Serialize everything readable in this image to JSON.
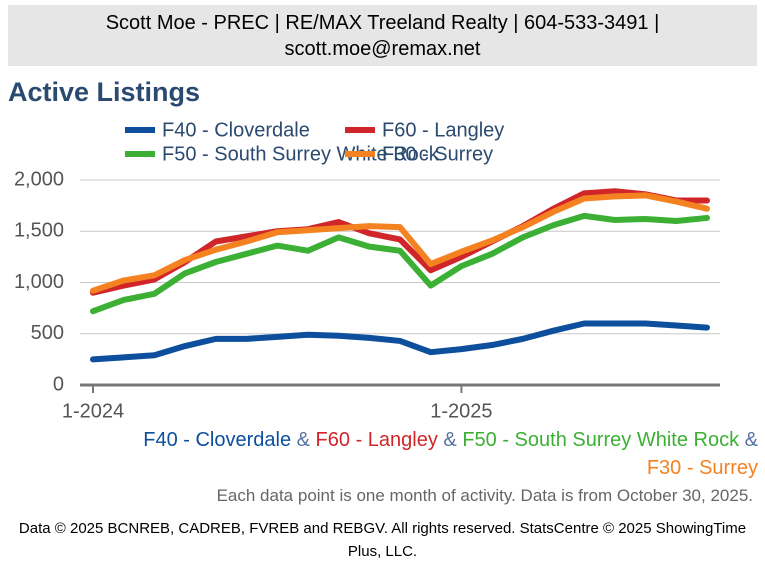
{
  "header": {
    "text": "Scott Moe - PREC | RE/MAX Treeland Realty | 604-533-3491 | scott.moe@remax.net"
  },
  "chart_data": {
    "type": "line",
    "title": "Active Listings",
    "categories": [
      "1-2024",
      null,
      null,
      null,
      null,
      null,
      null,
      null,
      null,
      null,
      null,
      null,
      "1-2025",
      null,
      null,
      null,
      null,
      null,
      null,
      null,
      null
    ],
    "series": [
      {
        "name": "F40 - Cloverdale",
        "color": "#0d4f9c",
        "values": [
          250,
          270,
          290,
          380,
          450,
          450,
          470,
          490,
          480,
          460,
          430,
          320,
          350,
          390,
          450,
          530,
          600,
          600,
          600,
          580,
          560
        ]
      },
      {
        "name": "F60 - Langley",
        "color": "#d0262a",
        "values": [
          900,
          970,
          1030,
          1200,
          1400,
          1450,
          1500,
          1520,
          1590,
          1480,
          1420,
          1120,
          1250,
          1400,
          1550,
          1720,
          1870,
          1890,
          1860,
          1800,
          1800
        ]
      },
      {
        "name": "F50 - South Surrey White Rock",
        "color": "#3cb034",
        "values": [
          720,
          830,
          890,
          1090,
          1200,
          1280,
          1360,
          1310,
          1440,
          1350,
          1310,
          970,
          1160,
          1280,
          1440,
          1560,
          1650,
          1610,
          1620,
          1600,
          1630
        ]
      },
      {
        "name": "F30 - Surrey",
        "color": "#f58220",
        "values": [
          920,
          1020,
          1070,
          1220,
          1320,
          1400,
          1490,
          1510,
          1530,
          1550,
          1540,
          1180,
          1300,
          1410,
          1540,
          1690,
          1820,
          1840,
          1850,
          1790,
          1720
        ]
      }
    ],
    "ylim": [
      0,
      2000
    ],
    "yticks": [
      0,
      500,
      {
        "value": 1000,
        "label": "1,000"
      },
      {
        "value": 1500,
        "label": "1,500"
      },
      {
        "value": 2000,
        "label": "2,000"
      }
    ],
    "grid": true,
    "series_joiner": "&",
    "note": "Each data point is one month of activity. Data is from October 30, 2025."
  },
  "footer": {
    "text": "Data © 2025 BCNREB, CADREB, FVREB and REBGV. All rights reserved. StatsCentre © 2025 ShowingTime Plus, LLC."
  }
}
